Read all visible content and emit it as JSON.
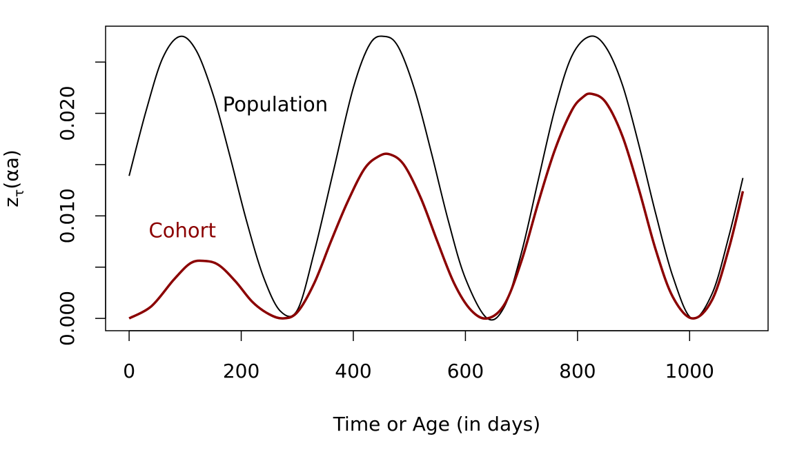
{
  "chart_data": {
    "type": "line",
    "title": "",
    "xlabel": "Time or Age (in days)",
    "ylabel": {
      "main": "z",
      "subscript": "τ",
      "suffix": "(αa)"
    },
    "xlim": [
      -42,
      1140
    ],
    "ylim": [
      -0.0012,
      0.0285
    ],
    "x_ticks": [
      0,
      200,
      400,
      600,
      800,
      1000
    ],
    "x_tick_labels": [
      "0",
      "200",
      "400",
      "600",
      "800",
      "1000"
    ],
    "y_ticks": [
      0,
      0.005,
      0.01,
      0.015,
      0.02,
      0.025
    ],
    "y_tick_labels": [
      "0.000",
      "",
      "0.010",
      "",
      "0.020",
      ""
    ],
    "grid": false,
    "series": [
      {
        "name": "Population",
        "color": "#000000",
        "x": [
          0,
          30,
          60,
          91,
          120,
          150,
          180,
          210,
          240,
          270,
          300,
          330,
          365,
          400,
          430,
          456,
          480,
          510,
          540,
          570,
          600,
          639,
          670,
          700,
          730,
          760,
          790,
          822,
          850,
          880,
          910,
          940,
          970,
          1004,
          1040,
          1070,
          1095
        ],
        "y": [
          0.0139,
          0.0202,
          0.0254,
          0.0275,
          0.0261,
          0.0218,
          0.0158,
          0.0094,
          0.004,
          0.0007,
          0.0008,
          0.0064,
          0.0145,
          0.0225,
          0.0268,
          0.0275,
          0.0265,
          0.0222,
          0.016,
          0.0094,
          0.0039,
          0.0,
          0.0012,
          0.0064,
          0.0135,
          0.0205,
          0.0256,
          0.0275,
          0.0265,
          0.0228,
          0.0168,
          0.0101,
          0.0041,
          0.0,
          0.0024,
          0.008,
          0.0137
        ]
      },
      {
        "name": "Cohort",
        "color": "#8b0000",
        "x": [
          0,
          40,
          80,
          110,
          135,
          160,
          190,
          220,
          250,
          275,
          300,
          330,
          360,
          390,
          420,
          445,
          465,
          490,
          520,
          550,
          580,
          610,
          639,
          670,
          700,
          730,
          760,
          790,
          810,
          825,
          850,
          880,
          910,
          940,
          970,
          1005,
          1040,
          1070,
          1095
        ],
        "y": [
          0.0,
          0.0012,
          0.0038,
          0.0054,
          0.0056,
          0.0052,
          0.0036,
          0.0016,
          0.0004,
          0.0,
          0.0006,
          0.0034,
          0.0075,
          0.0114,
          0.0146,
          0.0158,
          0.016,
          0.015,
          0.0118,
          0.0075,
          0.0034,
          0.0008,
          0.0,
          0.0014,
          0.0056,
          0.0113,
          0.0165,
          0.0203,
          0.0216,
          0.0219,
          0.0211,
          0.0178,
          0.0125,
          0.0066,
          0.0021,
          0.0,
          0.0018,
          0.0068,
          0.0124
        ]
      }
    ],
    "annotations": [
      {
        "text": "Population",
        "x": 167,
        "y": 0.0202,
        "color": "#000000"
      },
      {
        "text": "Cohort",
        "x": 35,
        "y": 0.0079,
        "color": "#8b0000"
      }
    ]
  }
}
